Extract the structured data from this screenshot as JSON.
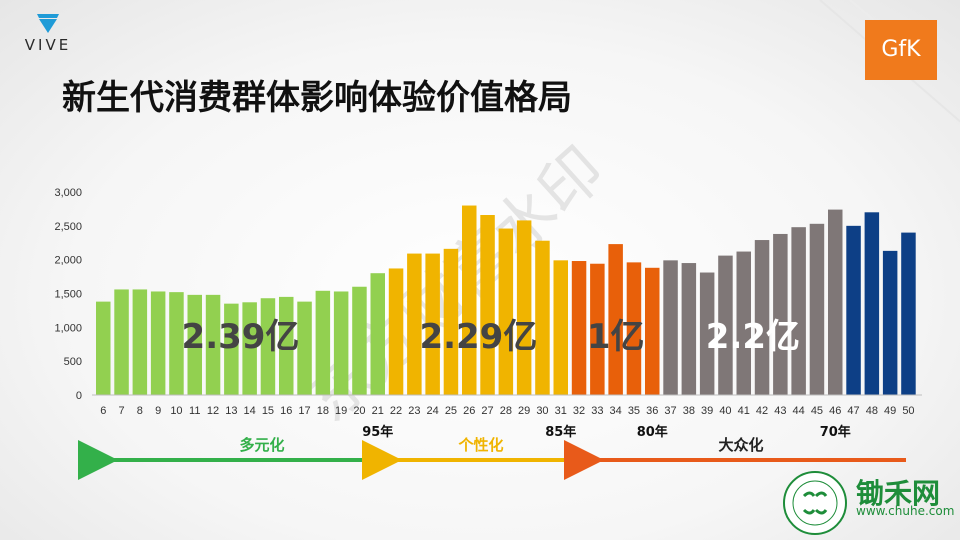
{
  "brand": {
    "vive": "VIVE",
    "gfk": "GfK",
    "chuhe_name": "锄禾网",
    "chuhe_url": "www.chuhe.com"
  },
  "title": "新生代消费群体影响体验价值格局",
  "watermark": "东方财富水印",
  "colors": {
    "green": "#92d050",
    "yellow": "#f0b400",
    "orange": "#e8600a",
    "gray": "#7f7777",
    "blue": "#0d3f86",
    "arrow_green": "#33b04a",
    "arrow_yellow": "#f0b400",
    "arrow_orange": "#e85a1a"
  },
  "chart_data": {
    "type": "bar",
    "categories": [
      "6",
      "7",
      "8",
      "9",
      "10",
      "11",
      "12",
      "13",
      "14",
      "15",
      "16",
      "17",
      "18",
      "19",
      "20",
      "21",
      "22",
      "23",
      "24",
      "25",
      "26",
      "27",
      "28",
      "29",
      "30",
      "31",
      "32",
      "33",
      "34",
      "35",
      "36",
      "37",
      "38",
      "39",
      "40",
      "41",
      "42",
      "43",
      "44",
      "45",
      "46",
      "47",
      "48",
      "49",
      "50"
    ],
    "values": [
      1380,
      1560,
      1560,
      1530,
      1520,
      1480,
      1480,
      1350,
      1370,
      1430,
      1450,
      1380,
      1540,
      1530,
      1600,
      1800,
      1870,
      2090,
      2090,
      2160,
      2800,
      2660,
      2460,
      2580,
      2280,
      1990,
      1980,
      1940,
      2230,
      1960,
      1880,
      1990,
      1950,
      1810,
      2060,
      2120,
      2290,
      2380,
      2480,
      2530,
      2740,
      2500,
      2700,
      2130,
      2400
    ],
    "groups": [
      "green",
      "green",
      "green",
      "green",
      "green",
      "green",
      "green",
      "green",
      "green",
      "green",
      "green",
      "green",
      "green",
      "green",
      "green",
      "green",
      "yellow",
      "yellow",
      "yellow",
      "yellow",
      "yellow",
      "yellow",
      "yellow",
      "yellow",
      "yellow",
      "yellow",
      "orange",
      "orange",
      "orange",
      "orange",
      "orange",
      "gray",
      "gray",
      "gray",
      "gray",
      "gray",
      "gray",
      "gray",
      "gray",
      "gray",
      "gray",
      "blue",
      "blue",
      "blue",
      "blue"
    ],
    "ylim": [
      0,
      3000
    ],
    "yticks": [
      "0",
      "500",
      "1,000",
      "1,500",
      "2,000",
      "2,500",
      "3,000"
    ],
    "grid": false,
    "group_totals": [
      {
        "text": "2.39亿",
        "group": "green"
      },
      {
        "text": "2.29亿",
        "group": "yellow"
      },
      {
        "text": "1亿",
        "group": "orange"
      },
      {
        "text": "2.2亿",
        "group": "gray"
      }
    ],
    "generation_labels": [
      {
        "text": "95年",
        "at": "21"
      },
      {
        "text": "85年",
        "at": "31"
      },
      {
        "text": "80年",
        "at": "36"
      },
      {
        "text": "70年",
        "at": "46"
      }
    ],
    "segments": [
      {
        "text": "多元化",
        "color": "green"
      },
      {
        "text": "个性化",
        "color": "yellow"
      },
      {
        "text": "大众化",
        "color": "orange"
      }
    ]
  }
}
